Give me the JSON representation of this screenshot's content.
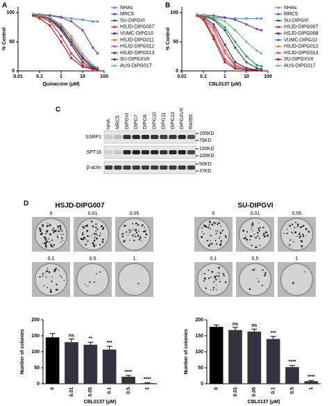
{
  "panel_labels": [
    "A",
    "B",
    "C",
    "D"
  ],
  "chart_data": [
    {
      "type": "line",
      "xscale": "log",
      "xlabel": "Quinacrine (μM)",
      "ylabel": "% Control",
      "x": [
        0.05,
        0.1,
        0.3,
        1,
        3,
        10,
        30,
        50
      ],
      "xlim": [
        0.01,
        100
      ],
      "xticks": [
        0.01,
        0.1,
        1,
        10,
        100
      ],
      "ylim": [
        0,
        110
      ],
      "yticks": [
        0,
        50,
        100
      ],
      "grid": false,
      "legend": "right",
      "series": [
        {
          "name": "NHAs",
          "color": "#4f8fe0",
          "values": [
            98,
            97,
            96,
            93,
            90,
            88,
            85,
            85
          ]
        },
        {
          "name": "MRC5",
          "color": "#7b3fa0",
          "values": [
            98,
            97,
            95,
            92,
            85,
            70,
            40,
            30
          ]
        },
        {
          "name": "SU-DIPGVI",
          "color": "#1f6b2a",
          "values": [
            97,
            95,
            90,
            75,
            50,
            20,
            5,
            3
          ]
        },
        {
          "name": "HSJD-DIPG007",
          "color": "#d62828",
          "values": [
            96,
            93,
            85,
            60,
            30,
            10,
            3,
            2
          ]
        },
        {
          "name": "VUMC-DIPG10",
          "color": "#3b2a6b",
          "values": [
            97,
            95,
            88,
            70,
            45,
            15,
            4,
            3
          ]
        },
        {
          "name": "HSJD-DIPG011",
          "color": "#e87d1e",
          "values": [
            97,
            94,
            88,
            72,
            48,
            20,
            6,
            4
          ]
        },
        {
          "name": "HSJD-DIPG012",
          "color": "#d43f9a",
          "values": [
            98,
            96,
            90,
            78,
            55,
            25,
            8,
            5
          ]
        },
        {
          "name": "HSJD-DIPG013",
          "color": "#2c3e9e",
          "values": [
            97,
            95,
            89,
            73,
            50,
            22,
            6,
            4
          ]
        },
        {
          "name": "SU-DIPGXVII",
          "color": "#b0152e",
          "values": [
            95,
            90,
            78,
            50,
            22,
            7,
            3,
            2
          ]
        },
        {
          "name": "AUS-DIPG017",
          "color": "#6cc070",
          "values": [
            98,
            96,
            92,
            80,
            60,
            30,
            10,
            6
          ]
        }
      ]
    },
    {
      "type": "line",
      "xscale": "log",
      "xlabel": "CBL0137 (μM)",
      "ylabel": "% Control",
      "x": [
        0.05,
        0.1,
        0.3,
        1,
        3,
        10,
        30,
        50
      ],
      "xlim": [
        0.01,
        100
      ],
      "xticks": [
        0.01,
        0.1,
        1,
        10,
        100
      ],
      "ylim": [
        0,
        110
      ],
      "yticks": [
        0,
        50,
        100
      ],
      "grid": false,
      "legend": "right",
      "series": [
        {
          "name": "NHAs",
          "color": "#4f8fe0",
          "values": [
            95,
            93,
            92,
            91,
            90,
            90,
            90,
            90
          ]
        },
        {
          "name": "MRC5",
          "color": "#7b3fa0",
          "values": [
            97,
            96,
            95,
            92,
            88,
            80,
            72,
            70
          ]
        },
        {
          "name": "SU-DIPGVI",
          "color": "#1f6b2a",
          "values": [
            96,
            94,
            88,
            70,
            40,
            15,
            5,
            3
          ]
        },
        {
          "name": "HSJD-DIPG007",
          "color": "#d62828",
          "values": [
            95,
            90,
            60,
            20,
            5,
            2,
            1,
            1
          ]
        },
        {
          "name": "HSJD-DIPG008",
          "color": "#3b2a6b",
          "values": [
            96,
            93,
            80,
            45,
            15,
            5,
            2,
            1
          ]
        },
        {
          "name": "VUMC-DIPG10",
          "color": "#2a8a6a",
          "values": [
            97,
            95,
            90,
            75,
            50,
            25,
            10,
            8
          ]
        },
        {
          "name": "HSJD-DIPG012",
          "color": "#e87d1e",
          "values": [
            95,
            90,
            70,
            30,
            8,
            3,
            1,
            1
          ]
        },
        {
          "name": "HSJD-DIPG013",
          "color": "#d43f9a",
          "values": [
            96,
            92,
            75,
            35,
            10,
            3,
            1,
            1
          ]
        },
        {
          "name": "SU-DIPGXVII",
          "color": "#b0152e",
          "values": [
            95,
            88,
            55,
            15,
            4,
            2,
            1,
            1
          ]
        },
        {
          "name": "AUS-DIPG017",
          "color": "#6cc070",
          "values": [
            97,
            96,
            92,
            85,
            70,
            50,
            35,
            30
          ]
        }
      ]
    },
    {
      "type": "bar",
      "xlabel": "CBL0137 (μM)",
      "ylabel": "Number of colonies",
      "categories": [
        "0",
        "0.01",
        "0.05",
        "0.1",
        "0.5",
        "1"
      ],
      "values": [
        145,
        130,
        122,
        107,
        22,
        2
      ],
      "errors": [
        12,
        10,
        8,
        10,
        4,
        1
      ],
      "annotations": [
        null,
        "ns",
        "**",
        "***",
        "****",
        "****"
      ],
      "colors": [
        "#000000",
        "#33333f",
        "#33333f",
        "#33333f",
        "#33333f",
        "#33333f"
      ],
      "ylim": [
        0,
        200
      ],
      "yticks": [
        0,
        50,
        100,
        150,
        200
      ]
    },
    {
      "type": "bar",
      "xlabel": "CBL0137 (μM)",
      "ylabel": "Number of colonies",
      "categories": [
        "0",
        "0.01",
        "0.05",
        "0.1",
        "0.5",
        "1"
      ],
      "values": [
        178,
        168,
        163,
        140,
        52,
        8
      ],
      "errors": [
        6,
        8,
        8,
        8,
        5,
        2
      ],
      "annotations": [
        null,
        "ns",
        "ns",
        "***",
        "****",
        "****"
      ],
      "colors": [
        "#000000",
        "#33333f",
        "#33333f",
        "#33333f",
        "#33333f",
        "#33333f"
      ],
      "ylim": [
        0,
        200
      ],
      "yticks": [
        0,
        50,
        100,
        150,
        200
      ]
    }
  ],
  "blot": {
    "lanes": [
      "NHA",
      "MRC5",
      "DIPGVI",
      "DIPG7",
      "DIPG8",
      "DIPG10",
      "DIPG11",
      "DIPG13",
      "DIPGXVII",
      "RA055"
    ],
    "rows": [
      {
        "name": "SSRP1",
        "markers": [
          "100KD",
          "75KD"
        ]
      },
      {
        "name": "SPT16",
        "markers": [
          "150KD",
          "100KD"
        ]
      },
      {
        "name": "β-actin",
        "markers": [
          "50KD",
          "37KD"
        ]
      }
    ]
  },
  "colony_assays": [
    {
      "title": "HSJD-DIPG007",
      "doses": [
        "0",
        "0.01",
        "0.05",
        "0.1",
        "0.5",
        "1"
      ]
    },
    {
      "title": "SU-DIPGVI",
      "doses": [
        "0",
        "0.01",
        "0.05",
        "0.1",
        "0.5",
        "1"
      ]
    }
  ]
}
